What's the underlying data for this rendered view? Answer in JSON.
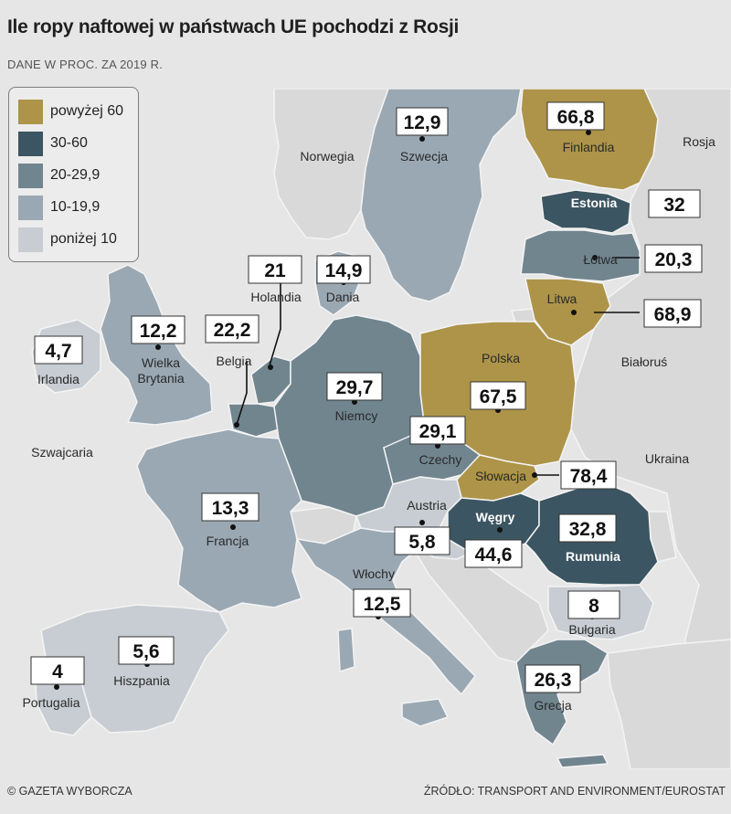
{
  "title": "Ile ropy naftowej w państwach UE pochodzi z Rosji",
  "subtitle": "DANE W PROC. ZA 2019 R.",
  "footer": {
    "credit": "© GAZETA WYBORCZA",
    "source": "ŹRÓDŁO: TRANSPORT AND ENVIRONMENT/EUROSTAT"
  },
  "colors": {
    "sea": "#e6e6e6",
    "non_eu": "#d9d9d9",
    "above_60": "#ad9448",
    "c30_60": "#3c5562",
    "c20_29_9": "#71858f",
    "c10_19_9": "#9aa8b3",
    "below_10": "#c8cdd3"
  },
  "legend": [
    {
      "label": "powyżej 60",
      "color": "#ad9448"
    },
    {
      "label": "30-60",
      "color": "#3c5562"
    },
    {
      "label": "20-29,9",
      "color": "#71858f"
    },
    {
      "label": "10-19,9",
      "color": "#9aa8b3"
    },
    {
      "label": "poniżej 10",
      "color": "#c8cdd3"
    }
  ],
  "countries": [
    {
      "name": "Finlandia",
      "value": "66,8",
      "category": "above_60"
    },
    {
      "name": "Szwecja",
      "value": "12,9",
      "category": "c10_19_9"
    },
    {
      "name": "Estonia",
      "value": "32",
      "category": "c30_60"
    },
    {
      "name": "Łotwa",
      "value": "20,3",
      "category": "c20_29_9"
    },
    {
      "name": "Litwa",
      "value": "68,9",
      "category": "above_60"
    },
    {
      "name": "Dania",
      "value": "14,9",
      "category": "c10_19_9"
    },
    {
      "name": "Holandia",
      "value": "21",
      "category": "c20_29_9"
    },
    {
      "name": "Belgia",
      "value": "22,2",
      "category": "c20_29_9"
    },
    {
      "name": "Wielka Brytania",
      "value": "12,2",
      "category": "c10_19_9"
    },
    {
      "name": "Irlandia",
      "value": "4,7",
      "category": "below_10"
    },
    {
      "name": "Niemcy",
      "value": "29,7",
      "category": "c20_29_9"
    },
    {
      "name": "Polska",
      "value": "67,5",
      "category": "above_60"
    },
    {
      "name": "Czechy",
      "value": "29,1",
      "category": "c20_29_9"
    },
    {
      "name": "Słowacja",
      "value": "78,4",
      "category": "above_60"
    },
    {
      "name": "Austria",
      "value": "5,8",
      "category": "below_10"
    },
    {
      "name": "Węgry",
      "value": "44,6",
      "category": "c30_60"
    },
    {
      "name": "Rumunia",
      "value": "32,8",
      "category": "c30_60"
    },
    {
      "name": "Francja",
      "value": "13,3",
      "category": "c10_19_9"
    },
    {
      "name": "Włochy",
      "value": "12,5",
      "category": "c10_19_9"
    },
    {
      "name": "Bułgaria",
      "value": "8",
      "category": "below_10"
    },
    {
      "name": "Grecja",
      "value": "26,3",
      "category": "c20_29_9"
    },
    {
      "name": "Hiszpania",
      "value": "5,6",
      "category": "below_10"
    },
    {
      "name": "Portugalia",
      "value": "4",
      "category": "below_10"
    }
  ],
  "other_labels": [
    "Norwegia",
    "Rosja",
    "Białoruś",
    "Ukraina",
    "Szwajcaria"
  ]
}
